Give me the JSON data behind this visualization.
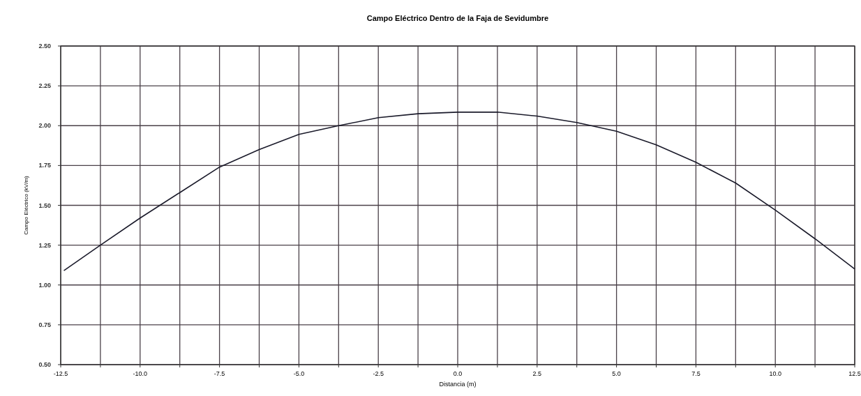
{
  "chart_data": {
    "type": "line",
    "title": "Campo Eléctrico Dentro de la Faja de Sevidumbre",
    "xlabel": "Distancia (m)",
    "ylabel": "Campo Eléctrico (kV/m)",
    "x": [
      -12.4,
      -11.25,
      -10,
      -8.75,
      -7.5,
      -6.25,
      -5,
      -3.75,
      -2.5,
      -1.25,
      0,
      1.25,
      2.5,
      3.75,
      5,
      6.25,
      7.5,
      8.75,
      10,
      11.25,
      12.5
    ],
    "series": [
      {
        "color": "#1a1a2a",
        "values": [
          1.09,
          1.25,
          1.42,
          1.58,
          1.74,
          1.85,
          1.945,
          2.0,
          2.05,
          2.075,
          2.085,
          2.085,
          2.06,
          2.02,
          1.965,
          1.88,
          1.77,
          1.64,
          1.47,
          1.29,
          1.1
        ]
      }
    ],
    "xlim": [
      -12.5,
      12.5
    ],
    "xticks": [
      -12.5,
      {
        "value": -11.25,
        "label": null
      },
      {
        "value": -10,
        "label": "-10.0"
      },
      {
        "value": -8.75,
        "label": null
      },
      -7.5,
      {
        "value": -6.25,
        "label": null
      },
      {
        "value": -5,
        "label": "-5.0"
      },
      {
        "value": -3.75,
        "label": null
      },
      -2.5,
      {
        "value": -1.25,
        "label": null
      },
      {
        "value": 0,
        "label": "0.0"
      },
      {
        "value": 1.25,
        "label": null
      },
      2.5,
      {
        "value": 3.75,
        "label": null
      },
      {
        "value": 5,
        "label": "5.0"
      },
      {
        "value": 6.25,
        "label": null
      },
      7.5,
      {
        "value": 8.75,
        "label": null
      },
      {
        "value": 10,
        "label": "10.0"
      },
      {
        "value": 11.25,
        "label": null
      },
      12.5
    ],
    "ylim": [
      0.5,
      2.5
    ],
    "yticks": [
      {
        "value": 0.5,
        "label": "0.50"
      },
      {
        "value": 0.75,
        "label": "0.75"
      },
      {
        "value": 1,
        "label": "1.00"
      },
      {
        "value": 1.25,
        "label": "1.25"
      },
      {
        "value": 1.5,
        "label": "1.50"
      },
      {
        "value": 1.75,
        "label": "1.75"
      },
      {
        "value": 2,
        "label": "2.00"
      },
      {
        "value": 2.25,
        "label": "2.25"
      },
      {
        "value": 2.5,
        "label": "2.50"
      }
    ],
    "grid": true,
    "marker": "none",
    "line_style": "solid"
  }
}
